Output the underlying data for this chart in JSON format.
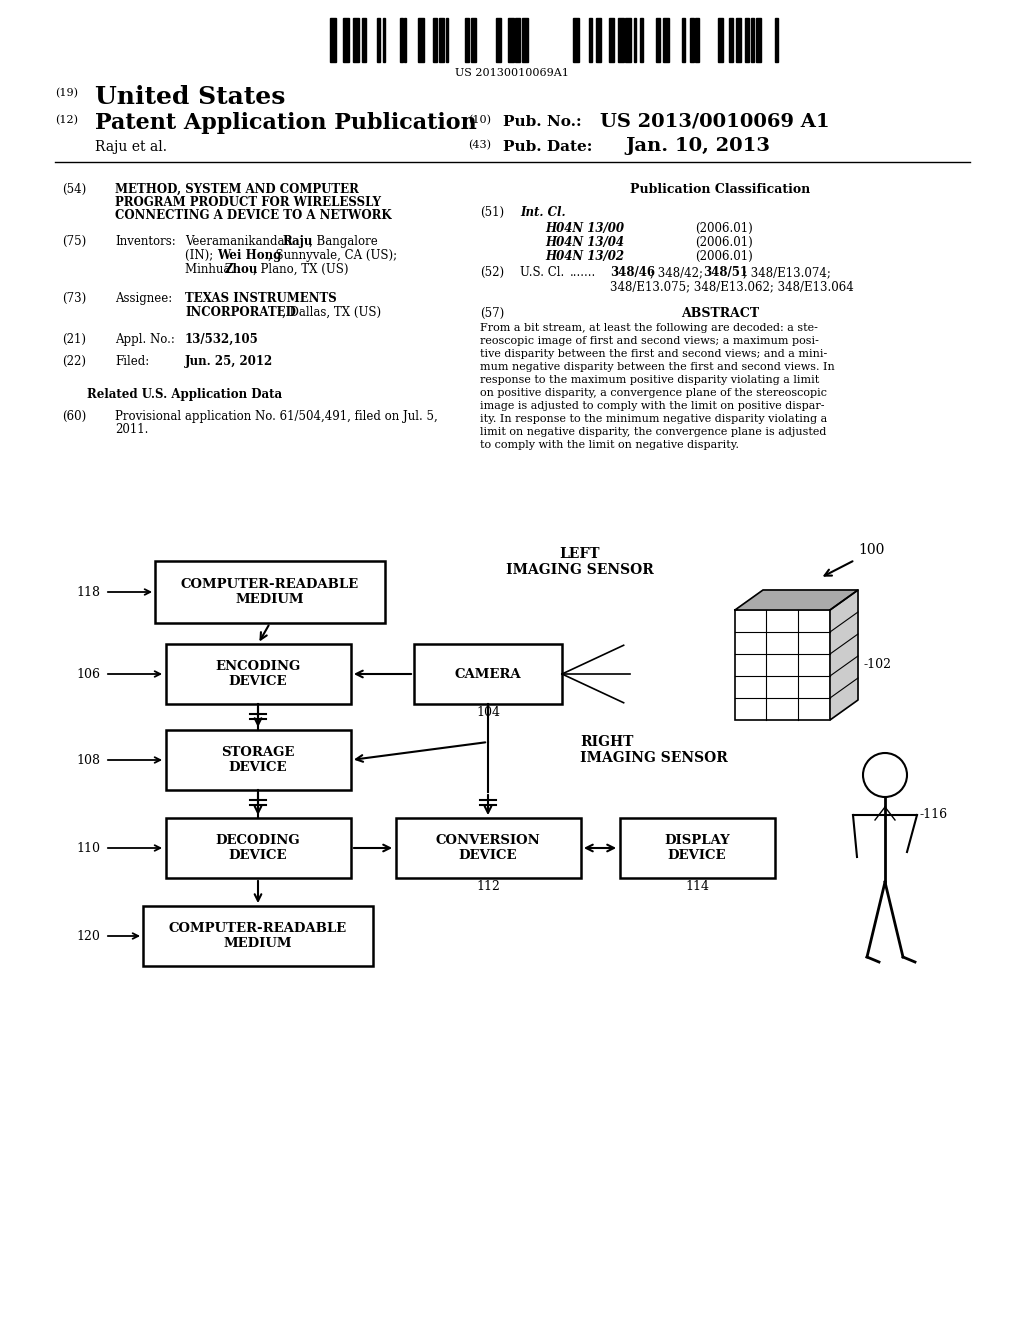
{
  "bg_color": "#ffffff",
  "barcode_text": "US 20130010069A1",
  "abstract_lines": [
    "From a bit stream, at least the following are decoded: a ste-",
    "reoscopic image of first and second views; a maximum posi-",
    "tive disparity between the first and second views; and a mini-",
    "mum negative disparity between the first and second views. In",
    "response to the maximum positive disparity violating a limit",
    "on positive disparity, a convergence plane of the stereoscopic",
    "image is adjusted to comply with the limit on positive dispar-",
    "ity. In response to the minimum negative disparity violating a",
    "limit on negative disparity, the convergence plane is adjusted",
    "to comply with the limit on negative disparity."
  ],
  "patent_classes": [
    [
      "H04N 13/00",
      "(2006.01)"
    ],
    [
      "H04N 13/04",
      "(2006.01)"
    ],
    [
      "H04N 13/02",
      "(2006.01)"
    ]
  ]
}
